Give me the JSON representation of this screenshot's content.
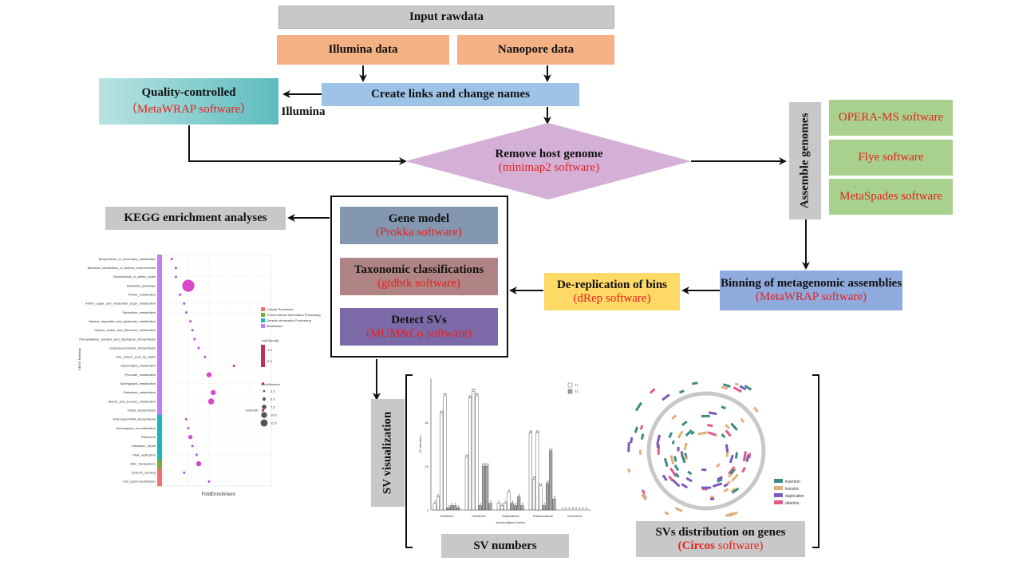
{
  "input_rawdata": "Input rawdata",
  "illumina_data": "Illumina data",
  "nanopore_data": "Nanopore data",
  "create_links": "Create links and change  names",
  "quality_controlled": {
    "title": "Quality-controlled",
    "software": "（MetaWRAP software）"
  },
  "illumina_label": "Illumina",
  "remove_host": {
    "title": "Remove host genome",
    "software": "(minimap2 software)"
  },
  "assemble_genomes": "Assemble genomes",
  "assembly_software": [
    "OPERA-MS software",
    "Flye software",
    "MetaSpades software"
  ],
  "binning": {
    "title": "Binning of metagenomic assemblies",
    "software": "(MetaWRAP software)"
  },
  "dereplication": {
    "title": "De-replication of bins",
    "software": "(dRep software)"
  },
  "gene_model": {
    "title": "Gene model",
    "software": "(Prokka software)"
  },
  "taxonomic": {
    "title": "Taxonomic classifications",
    "software": "(gtdbtk software)"
  },
  "detect_svs": {
    "title": "Detect SVs",
    "software": "(MUM&Co software)"
  },
  "kegg": "KEGG enrichment analyses",
  "sv_visualization": "SV visualization",
  "sv_numbers": "SV numbers",
  "svs_distribution": {
    "title": "SVs distribution on genes",
    "software_bold": "(Circos",
    "software_rest": " software)"
  },
  "kegg_plot": {
    "ylabel": "KEGG Pathway",
    "xlabel": "FoldEnrichment",
    "pathways": [
      "Biosynthesis_of_secondary_metabolites",
      "Microbial_metabolism_in_diverse_environments",
      "Biosynthesis_of_amino_acids",
      "Metabolic_pathways",
      "Purine_metabolism",
      "Amino_sugar_and_nucleotide_sugar_metabolism",
      "Pyrimidine_metabolism",
      "Alanine_aspartate_and_glutamate_metabolism",
      "Glycine_serine_and_threonine_metabolism",
      "Phenylalanine_tyrosine_and_tryptophan_biosynthesis",
      "Lipopolysaccharide_biosynthesis",
      "One_carbon_pool_by_folate",
      "Glycerolipid_metabolism",
      "Pyruvate_metabolism",
      "Sphingolipid_metabolism",
      "Galactose_metabolism",
      "Starch_and_sucrose_metabolism",
      "Folate_biosynthesis",
      "Aminoacyl-tRNA_biosynthesis",
      "Homologous_recombination",
      "Ribosome",
      "Mismatch_repair",
      "DNA_replication",
      "ABC_transporters",
      "Quorum_sensing",
      "Cell_cycle-Caulobacter"
    ],
    "fold": [
      0.2,
      0.4,
      0.4,
      1.0,
      0.6,
      0.8,
      0.9,
      1.1,
      1.2,
      1.3,
      1.5,
      1.8,
      3.2,
      2.0,
      4.6,
      2.2,
      2.1,
      4.6,
      0.9,
      1.0,
      1.1,
      1.2,
      1.4,
      1.5,
      0.8,
      2.0
    ],
    "size": [
      1,
      1,
      1,
      12,
      1,
      1,
      1,
      1,
      1,
      1,
      1,
      1,
      1,
      4,
      1,
      4,
      5,
      1,
      1,
      1,
      3,
      1,
      1,
      4,
      1,
      1
    ],
    "categories": [
      "Cellular Processes",
      "Environmental Information Processing",
      "Genetic Information Processing",
      "Metabolism"
    ],
    "category_colors": [
      "#f0706f",
      "#7aa83c",
      "#18b4bf",
      "#c27df0"
    ],
    "legend_color_title": "-log10(p.adj)",
    "legend_color_ticks": [
      "1.0",
      "0.5"
    ],
    "legend_size_title": "GeneNumber",
    "legend_size_ticks": [
      "2.5",
      "5.0",
      "7.5",
      "10.0",
      "12.5"
    ],
    "annotation": "ko00790"
  },
  "chart_data": {
    "type": "bar",
    "title": "",
    "xlabel": "Anaerostipes hadrus",
    "ylabel": "SV numbers",
    "categories": [
      "Deletions",
      "Insertions",
      "Duplications",
      "Translocations",
      "Inversions"
    ],
    "legend": [
      "T1",
      "T2"
    ],
    "ylim": [
      0,
      60
    ],
    "ticks": [
      0,
      20,
      40
    ],
    "groups": [
      [
        [
          3,
          6,
          44,
          52
        ],
        [
          1,
          2,
          2,
          1
        ]
      ],
      [
        [
          24,
          51,
          54,
          52
        ],
        [
          2,
          20,
          20,
          3
        ]
      ],
      [
        [
          3,
          2,
          3,
          8
        ],
        [
          3,
          2,
          6,
          2
        ]
      ],
      [
        [
          35,
          14,
          35,
          11
        ],
        [
          2,
          12,
          27,
          5
        ]
      ],
      [
        [
          0,
          0,
          0,
          0
        ],
        [
          0,
          0,
          0,
          0
        ]
      ]
    ]
  },
  "circos_legend": [
    {
      "label": "insertion",
      "color": "#3d8b84"
    },
    {
      "label": "transloc",
      "color": "#e1b07a"
    },
    {
      "label": "duplication",
      "color": "#7a5ab8"
    },
    {
      "label": "deletion",
      "color": "#e05a8a"
    }
  ]
}
